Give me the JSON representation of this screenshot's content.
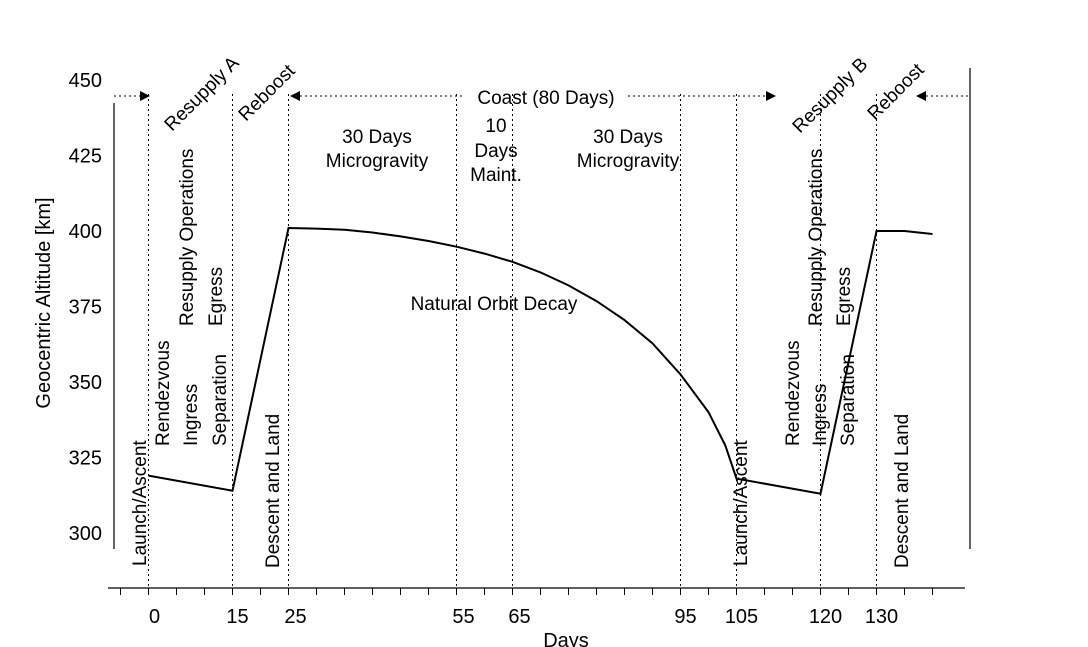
{
  "chart_data": {
    "type": "line",
    "title": "",
    "xlabel": "Days",
    "ylabel": "Geocentric Altitude [km]",
    "xlim": [
      -7,
      145
    ],
    "ylim": [
      300,
      450
    ],
    "x_ticks": [
      0,
      15,
      25,
      55,
      65,
      95,
      105,
      120,
      130
    ],
    "y_ticks": [
      300,
      325,
      350,
      375,
      400,
      425,
      450
    ],
    "grid": false,
    "phase_boundaries": [
      0,
      15,
      25,
      55,
      65,
      95,
      105,
      120,
      130
    ],
    "series": [
      {
        "values": [
          [
            0,
            319
          ],
          [
            15,
            314
          ],
          [
            25,
            401
          ],
          [
            30,
            400.8
          ],
          [
            35,
            400.4
          ],
          [
            40,
            399.5
          ],
          [
            45,
            398.2
          ],
          [
            50,
            396.7
          ],
          [
            55,
            394.8
          ],
          [
            60,
            392.5
          ],
          [
            65,
            389.8
          ],
          [
            70,
            386.3
          ],
          [
            75,
            382
          ],
          [
            80,
            376.8
          ],
          [
            85,
            370.5
          ],
          [
            90,
            362.8
          ],
          [
            95,
            352.5
          ],
          [
            100,
            340
          ],
          [
            103,
            329
          ],
          [
            105,
            318
          ],
          [
            120,
            313
          ],
          [
            130,
            400
          ],
          [
            135,
            400
          ],
          [
            140,
            399
          ]
        ]
      }
    ],
    "annotations": {
      "coast": "Coast (80 Days)",
      "resupply_a": "Resupply A",
      "resupply_b": "Resupply B",
      "reboost": "Reboost",
      "micro_line1": "30 Days",
      "micro_line2": "Microgravity",
      "maint_line1": "10",
      "maint_line2": "Days",
      "maint_line3": "Maint.",
      "decay": "Natural Orbit Decay",
      "launch": "Launch/Ascent",
      "rendezvous": "Rendezvous",
      "ingress": "Ingress",
      "resupply_ops": "Resupply Operations",
      "separation": "Separation",
      "egress": "Egress",
      "descent": "Descent and Land"
    }
  }
}
